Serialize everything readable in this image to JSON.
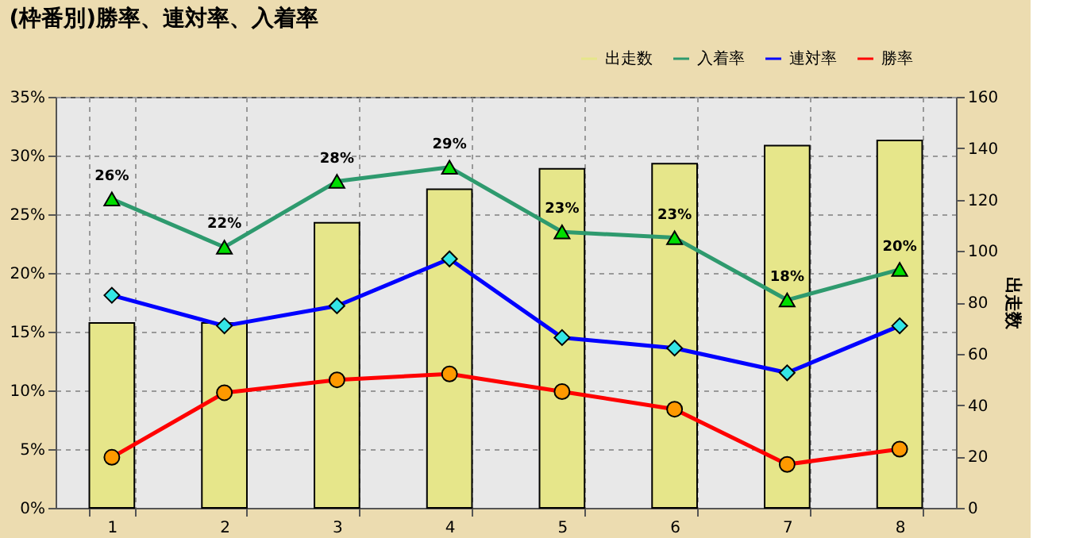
{
  "chart_data": {
    "type": "bar",
    "title": "(枠番別)勝率、連対率、入着率",
    "y2label": "出走数",
    "categories": [
      "1",
      "2",
      "3",
      "4",
      "5",
      "6",
      "7",
      "8"
    ],
    "ylim": [
      0,
      35
    ],
    "yticks": [
      {
        "value": 0,
        "label": "0%"
      },
      {
        "value": 5,
        "label": "5%"
      },
      {
        "value": 10,
        "label": "10%"
      },
      {
        "value": 15,
        "label": "15%"
      },
      {
        "value": 20,
        "label": "20%"
      },
      {
        "value": 25,
        "label": "25%"
      },
      {
        "value": 30,
        "label": "30%"
      },
      {
        "value": 35,
        "label": "35%"
      }
    ],
    "y2lim": [
      0,
      160
    ],
    "y2ticks": [
      0,
      20,
      40,
      60,
      80,
      100,
      120,
      140,
      160
    ],
    "grid": true,
    "legend": "top right",
    "series": [
      {
        "name": "出走数",
        "axis": "y2",
        "color": "#e6e68a",
        "values": [
          72,
          72,
          111,
          124,
          132,
          134,
          141,
          143
        ]
      },
      {
        "name": "入着率",
        "type": "line",
        "marker": "triangle",
        "color": "#2e9a6e",
        "values": [
          26.3,
          22.2,
          27.8,
          29.0,
          23.5,
          23.0,
          17.7,
          20.3
        ],
        "value_labels": [
          "26%",
          "22%",
          "28%",
          "29%",
          "23%",
          "23%",
          "18%",
          "20%"
        ]
      },
      {
        "name": "連対率",
        "type": "line",
        "marker": "diamond",
        "color": "#0000ff",
        "values": [
          18.1,
          15.5,
          17.2,
          21.2,
          14.5,
          13.6,
          11.5,
          15.5
        ]
      },
      {
        "name": "勝率",
        "type": "line",
        "marker": "circle",
        "color": "#ff0000",
        "values": [
          4.3,
          9.8,
          10.9,
          11.4,
          9.9,
          8.4,
          3.7,
          5.0
        ]
      }
    ]
  }
}
